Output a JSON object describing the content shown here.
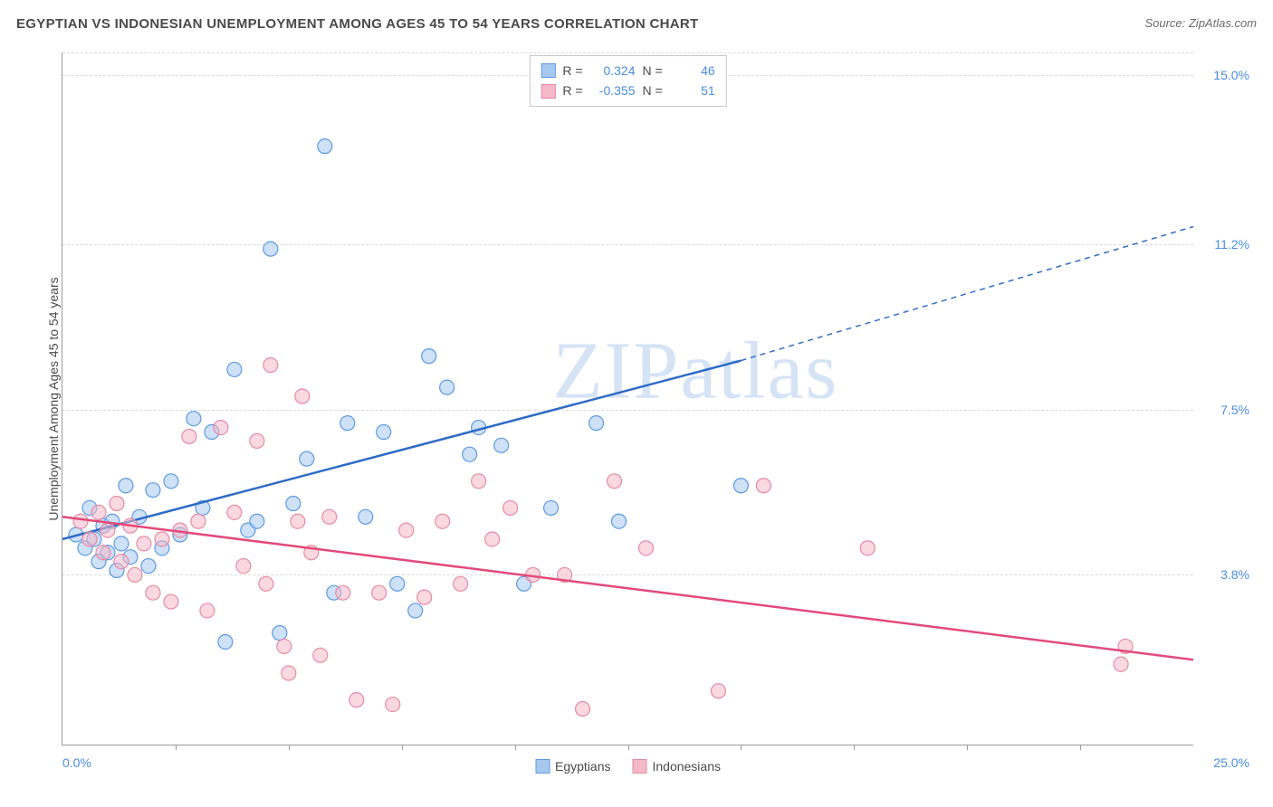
{
  "title": "EGYPTIAN VS INDONESIAN UNEMPLOYMENT AMONG AGES 45 TO 54 YEARS CORRELATION CHART",
  "source": "Source: ZipAtlas.com",
  "watermark": "ZIPatlas",
  "y_axis_label": "Unemployment Among Ages 45 to 54 years",
  "chart": {
    "type": "scatter",
    "background_color": "#ffffff",
    "grid_color": "#d9d9d9",
    "axis_color": "#9a9a9a",
    "value_text_color": "#4a8de0",
    "xlim": [
      0,
      25
    ],
    "ylim": [
      0,
      15.5
    ],
    "x_start_label": "0.0%",
    "x_end_label": "25.0%",
    "x_tick_positions": [
      2.5,
      5,
      7.5,
      10,
      12.5,
      15,
      17.5,
      20,
      22.5
    ],
    "y_gridlines": [
      {
        "value": 3.8,
        "label": "3.8%"
      },
      {
        "value": 7.5,
        "label": "7.5%"
      },
      {
        "value": 11.2,
        "label": "11.2%"
      },
      {
        "value": 15.0,
        "label": "15.0%"
      }
    ],
    "marker_radius": 8,
    "marker_opacity": 0.55,
    "line_width": 2.5,
    "series": [
      {
        "name": "Egyptians",
        "fill_color": "#a7c9ef",
        "stroke_color": "#5b9ae2",
        "line_color": "#2e6bc6",
        "R": "0.324",
        "N": "46",
        "trend_start": {
          "x": 0,
          "y": 4.6
        },
        "trend_solid_end": {
          "x": 15,
          "y": 8.6
        },
        "trend_dash_end": {
          "x": 25,
          "y": 11.6
        },
        "points": [
          {
            "x": 0.3,
            "y": 4.7
          },
          {
            "x": 0.5,
            "y": 4.4
          },
          {
            "x": 0.6,
            "y": 5.3
          },
          {
            "x": 0.7,
            "y": 4.6
          },
          {
            "x": 0.8,
            "y": 4.1
          },
          {
            "x": 0.9,
            "y": 4.9
          },
          {
            "x": 1.0,
            "y": 4.3
          },
          {
            "x": 1.1,
            "y": 5.0
          },
          {
            "x": 1.2,
            "y": 3.9
          },
          {
            "x": 1.3,
            "y": 4.5
          },
          {
            "x": 1.4,
            "y": 5.8
          },
          {
            "x": 1.5,
            "y": 4.2
          },
          {
            "x": 1.7,
            "y": 5.1
          },
          {
            "x": 1.9,
            "y": 4.0
          },
          {
            "x": 2.0,
            "y": 5.7
          },
          {
            "x": 2.2,
            "y": 4.4
          },
          {
            "x": 2.4,
            "y": 5.9
          },
          {
            "x": 2.6,
            "y": 4.7
          },
          {
            "x": 2.9,
            "y": 7.3
          },
          {
            "x": 3.1,
            "y": 5.3
          },
          {
            "x": 3.3,
            "y": 7.0
          },
          {
            "x": 3.6,
            "y": 2.3
          },
          {
            "x": 3.8,
            "y": 8.4
          },
          {
            "x": 4.1,
            "y": 4.8
          },
          {
            "x": 4.3,
            "y": 5.0
          },
          {
            "x": 4.6,
            "y": 11.1
          },
          {
            "x": 4.8,
            "y": 2.5
          },
          {
            "x": 5.1,
            "y": 5.4
          },
          {
            "x": 5.4,
            "y": 6.4
          },
          {
            "x": 5.8,
            "y": 13.4
          },
          {
            "x": 6.0,
            "y": 3.4
          },
          {
            "x": 6.3,
            "y": 7.2
          },
          {
            "x": 6.7,
            "y": 5.1
          },
          {
            "x": 7.1,
            "y": 7.0
          },
          {
            "x": 7.4,
            "y": 3.6
          },
          {
            "x": 7.8,
            "y": 3.0
          },
          {
            "x": 8.1,
            "y": 8.7
          },
          {
            "x": 8.5,
            "y": 8.0
          },
          {
            "x": 9.0,
            "y": 6.5
          },
          {
            "x": 9.2,
            "y": 7.1
          },
          {
            "x": 9.7,
            "y": 6.7
          },
          {
            "x": 10.2,
            "y": 3.6
          },
          {
            "x": 10.8,
            "y": 5.3
          },
          {
            "x": 11.8,
            "y": 7.2
          },
          {
            "x": 12.3,
            "y": 5.0
          },
          {
            "x": 15.0,
            "y": 5.8
          }
        ]
      },
      {
        "name": "Indonesians",
        "fill_color": "#f4b8c8",
        "stroke_color": "#e68aa5",
        "line_color": "#e24a7a",
        "R": "-0.355",
        "N": "51",
        "trend_start": {
          "x": 0,
          "y": 5.1
        },
        "trend_solid_end": {
          "x": 25,
          "y": 1.9
        },
        "trend_dash_end": null,
        "points": [
          {
            "x": 0.4,
            "y": 5.0
          },
          {
            "x": 0.6,
            "y": 4.6
          },
          {
            "x": 0.8,
            "y": 5.2
          },
          {
            "x": 0.9,
            "y": 4.3
          },
          {
            "x": 1.0,
            "y": 4.8
          },
          {
            "x": 1.2,
            "y": 5.4
          },
          {
            "x": 1.3,
            "y": 4.1
          },
          {
            "x": 1.5,
            "y": 4.9
          },
          {
            "x": 1.6,
            "y": 3.8
          },
          {
            "x": 1.8,
            "y": 4.5
          },
          {
            "x": 2.0,
            "y": 3.4
          },
          {
            "x": 2.2,
            "y": 4.6
          },
          {
            "x": 2.4,
            "y": 3.2
          },
          {
            "x": 2.6,
            "y": 4.8
          },
          {
            "x": 2.8,
            "y": 6.9
          },
          {
            "x": 3.0,
            "y": 5.0
          },
          {
            "x": 3.2,
            "y": 3.0
          },
          {
            "x": 3.5,
            "y": 7.1
          },
          {
            "x": 3.8,
            "y": 5.2
          },
          {
            "x": 4.0,
            "y": 4.0
          },
          {
            "x": 4.3,
            "y": 6.8
          },
          {
            "x": 4.5,
            "y": 3.6
          },
          {
            "x": 4.6,
            "y": 8.5
          },
          {
            "x": 4.9,
            "y": 2.2
          },
          {
            "x": 5.2,
            "y": 5.0
          },
          {
            "x": 5.3,
            "y": 7.8
          },
          {
            "x": 5.5,
            "y": 4.3
          },
          {
            "x": 5.7,
            "y": 2.0
          },
          {
            "x": 5.9,
            "y": 5.1
          },
          {
            "x": 6.2,
            "y": 3.4
          },
          {
            "x": 6.5,
            "y": 1.0
          },
          {
            "x": 7.0,
            "y": 3.4
          },
          {
            "x": 7.3,
            "y": 0.9
          },
          {
            "x": 7.6,
            "y": 4.8
          },
          {
            "x": 8.0,
            "y": 3.3
          },
          {
            "x": 8.4,
            "y": 5.0
          },
          {
            "x": 8.8,
            "y": 3.6
          },
          {
            "x": 9.2,
            "y": 5.9
          },
          {
            "x": 9.5,
            "y": 4.6
          },
          {
            "x": 9.9,
            "y": 5.3
          },
          {
            "x": 10.4,
            "y": 3.8
          },
          {
            "x": 11.1,
            "y": 3.8
          },
          {
            "x": 11.5,
            "y": 0.8
          },
          {
            "x": 12.2,
            "y": 5.9
          },
          {
            "x": 12.9,
            "y": 4.4
          },
          {
            "x": 14.5,
            "y": 1.2
          },
          {
            "x": 15.5,
            "y": 5.8
          },
          {
            "x": 17.8,
            "y": 4.4
          },
          {
            "x": 23.4,
            "y": 1.8
          },
          {
            "x": 23.5,
            "y": 2.2
          },
          {
            "x": 5.0,
            "y": 1.6
          }
        ]
      }
    ]
  },
  "legend_top": {
    "label_R": "R =",
    "label_N": "N ="
  },
  "legend_bottom": [
    {
      "label": "Egyptians",
      "fill": "#a7c9ef",
      "stroke": "#5b9ae2"
    },
    {
      "label": "Indonesians",
      "fill": "#f4b8c8",
      "stroke": "#e68aa5"
    }
  ]
}
